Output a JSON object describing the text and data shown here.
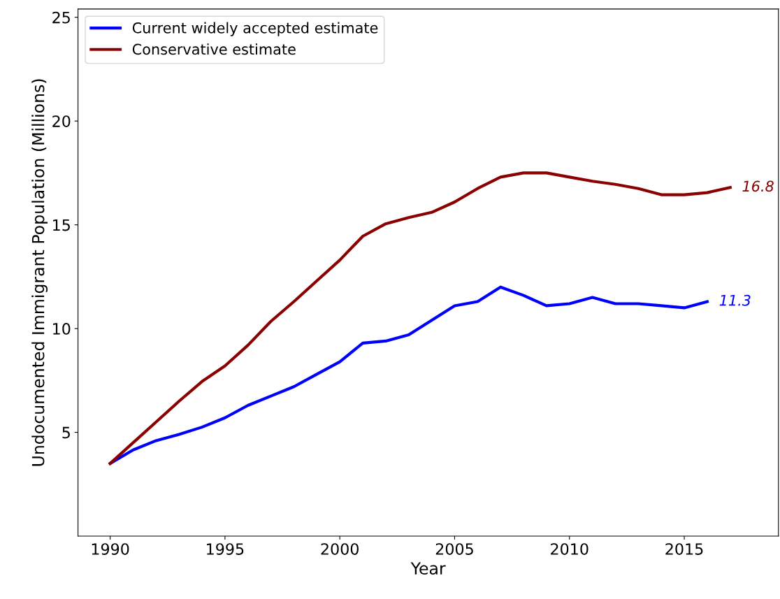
{
  "chart_data": {
    "type": "line",
    "xlabel": "Year",
    "ylabel": "Undocumented Immigrant Population (Millions)",
    "x": [
      1990,
      1991,
      1992,
      1993,
      1994,
      1995,
      1996,
      1997,
      1998,
      1999,
      2000,
      2001,
      2002,
      2003,
      2004,
      2005,
      2006,
      2007,
      2008,
      2009,
      2010,
      2011,
      2012,
      2013,
      2014,
      2015,
      2016,
      2017
    ],
    "series": [
      {
        "name": "Current widely accepted estimate",
        "color": "#0000ff",
        "values": [
          3.5,
          4.15,
          4.6,
          4.9,
          5.25,
          5.7,
          6.3,
          6.75,
          7.2,
          7.8,
          8.4,
          9.3,
          9.4,
          9.7,
          10.4,
          11.1,
          11.3,
          12.0,
          11.6,
          11.1,
          11.2,
          11.5,
          11.2,
          11.2,
          11.1,
          11.0,
          11.3,
          null
        ]
      },
      {
        "name": "Conservative estimate",
        "color": "#8b0000",
        "values": [
          3.5,
          4.5,
          5.5,
          6.5,
          7.45,
          8.2,
          9.2,
          10.35,
          11.3,
          12.3,
          13.3,
          14.45,
          15.05,
          15.35,
          15.6,
          16.1,
          16.75,
          17.3,
          17.5,
          17.5,
          17.3,
          17.1,
          16.95,
          16.75,
          16.45,
          16.45,
          16.55,
          16.8
        ]
      }
    ],
    "annotations": [
      {
        "text": "11.3",
        "x": 2016,
        "y": 11.3
      },
      {
        "text": "16.8",
        "x": 2017,
        "y": 16.8
      }
    ],
    "xlim": [
      1988.6,
      2019.1
    ],
    "ylim": [
      0,
      25.4
    ],
    "xticks": [
      1990,
      1995,
      2000,
      2005,
      2010,
      2015
    ],
    "yticks": [
      5,
      10,
      15,
      20,
      25
    ],
    "legend": "top left",
    "grid": false
  }
}
